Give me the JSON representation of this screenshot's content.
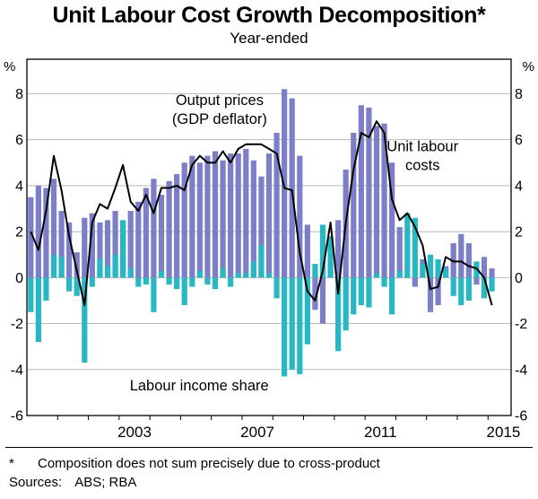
{
  "header": {
    "title": "Unit Labour Cost Growth Decomposition*",
    "subtitle": "Year-ended"
  },
  "footer": {
    "footnote_marker": "*",
    "footnote_text": "Composition does not sum precisely due to cross-product",
    "sources_label": "Sources:",
    "sources_text": "ABS; RBA"
  },
  "chart_data": {
    "type": "bar",
    "title": "Unit Labour Cost Growth Decomposition*",
    "subtitle": "Year-ended",
    "unit_left": "%",
    "unit_right": "%",
    "ylim": [
      -6,
      9.5
    ],
    "ytick_min": -6,
    "ytick_max": 8,
    "ytick_step": 2,
    "grid": "horizontal",
    "x_frequency": "quarterly",
    "x_start_year": 2000,
    "x_start": "2000:Q1",
    "x_end": "2015:Q1",
    "x_total_slots": 63,
    "xtick_year_labels": [
      2003,
      2007,
      2011,
      2015
    ],
    "series": [
      {
        "id": "output-prices",
        "name": "Output prices (GDP deflator)",
        "kind": "bar",
        "color": "#7d7ec8",
        "values": [
          3.5,
          4.0,
          3.9,
          4.3,
          2.9,
          2.4,
          1.1,
          2.6,
          2.8,
          2.4,
          2.5,
          2.9,
          2.4,
          2.9,
          3.3,
          3.9,
          4.3,
          3.6,
          4.2,
          4.5,
          5.0,
          5.3,
          5.0,
          5.3,
          5.5,
          5.1,
          5.4,
          5.4,
          5.6,
          5.1,
          4.4,
          5.4,
          6.3,
          8.2,
          7.8,
          5.3,
          2.3,
          -1.4,
          -2.0,
          0.6,
          2.5,
          4.7,
          6.3,
          7.5,
          7.4,
          6.6,
          6.7,
          5.0,
          2.2,
          0.0,
          -0.4,
          0.8,
          -1.5,
          -1.2,
          0.5,
          1.5,
          1.9,
          1.5,
          -0.3,
          0.9,
          0.4
        ]
      },
      {
        "id": "labour-income-share",
        "name": "Labour income share",
        "kind": "bar",
        "color": "#29b8c3",
        "values": [
          -1.5,
          -2.8,
          -1.0,
          1.0,
          0.9,
          -0.6,
          -0.8,
          -3.7,
          -0.4,
          0.8,
          0.5,
          1.0,
          2.5,
          0.4,
          -0.4,
          -0.3,
          -1.5,
          0.3,
          -0.3,
          -0.5,
          -1.2,
          -0.4,
          0.3,
          -0.3,
          -0.5,
          0.4,
          -0.4,
          0.2,
          0.2,
          0.7,
          1.4,
          0.2,
          -0.9,
          -4.3,
          -4.0,
          -4.2,
          -2.9,
          0.6,
          2.3,
          1.8,
          -3.2,
          -2.3,
          -1.6,
          -1.2,
          -1.3,
          0.2,
          -0.4,
          -1.6,
          0.3,
          2.8,
          2.6,
          0.6,
          1.0,
          0.8,
          0.4,
          -0.8,
          -1.2,
          -1.0,
          0.7,
          -0.9,
          -0.6
        ]
      },
      {
        "id": "unit-labour-costs",
        "name": "Unit labour costs",
        "kind": "line",
        "color": "#000000",
        "values": [
          2.0,
          1.2,
          2.9,
          5.3,
          3.8,
          1.8,
          0.3,
          -1.2,
          2.4,
          3.2,
          3.0,
          3.9,
          4.9,
          3.3,
          2.9,
          3.6,
          2.8,
          3.9,
          3.9,
          4.0,
          3.8,
          4.9,
          5.3,
          5.0,
          5.0,
          5.5,
          5.0,
          5.6,
          5.8,
          5.8,
          5.8,
          5.6,
          5.4,
          3.9,
          3.8,
          1.1,
          -0.6,
          -1.0,
          0.3,
          2.4,
          -0.7,
          2.4,
          4.7,
          6.3,
          6.1,
          6.8,
          6.3,
          3.4,
          2.5,
          2.8,
          2.2,
          1.4,
          -0.5,
          -0.4,
          0.9,
          0.7,
          0.7,
          0.5,
          0.4,
          0.0,
          -1.2
        ]
      }
    ],
    "annotations": [
      {
        "id": "output-prices-annotation",
        "lines": [
          "Output prices",
          "(GDP deflator)"
        ],
        "color": "#6568bd",
        "x_frac": 0.398,
        "y_value": 7.5
      },
      {
        "id": "unit-labour-costs-annotation",
        "lines": [
          "Unit labour",
          "costs"
        ],
        "color": "#000000",
        "x_frac": 0.817,
        "y_value": 5.5
      },
      {
        "id": "labour-income-share-annotation",
        "lines": [
          "Labour income share"
        ],
        "color": "#29b8c3",
        "x_frac": 0.356,
        "y_value": -4.9
      }
    ],
    "legend_position": "annotations-in-plot"
  }
}
